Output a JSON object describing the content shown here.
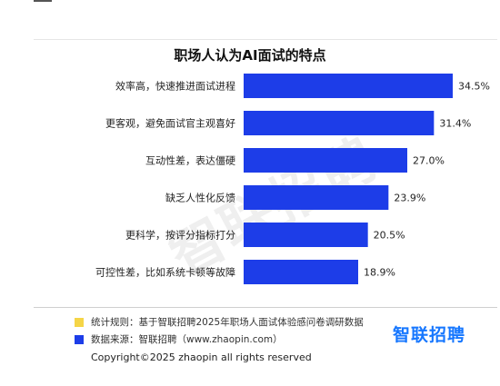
{
  "chart_data": {
    "type": "bar",
    "orientation": "horizontal",
    "title": "职场人认为AI面试的特点",
    "categories": [
      "效率高，快速推进面试进程",
      "更客观，避免面试官主观喜好",
      "互动性差，表达僵硬",
      "缺乏人性化反馈",
      "更科学，按评分指标打分",
      "可控性差，比如系统卡顿等故障"
    ],
    "values": [
      34.5,
      31.4,
      27.0,
      23.9,
      20.5,
      18.9
    ],
    "value_labels": [
      "34.5%",
      "31.4%",
      "27.0%",
      "23.9%",
      "20.5%",
      "18.9%"
    ],
    "unit": "%",
    "xlim": [
      0,
      34.5
    ],
    "grid": false,
    "colors": {
      "bar": "#1d3de8",
      "legend_rule": "#f5d547",
      "legend_source": "#1d3de8",
      "brand": "#1677ff"
    }
  },
  "watermark": "智联招聘",
  "legend": {
    "rule": "统计规则：基于智联招聘2025年职场人面试体验感问卷调研数据",
    "source": "数据来源：智联招聘（www.zhaopin.com）"
  },
  "brand": {
    "name": "智联招聘"
  },
  "footer": {
    "copyright": "Copyright©2025 zhaopin all rights reserved"
  }
}
